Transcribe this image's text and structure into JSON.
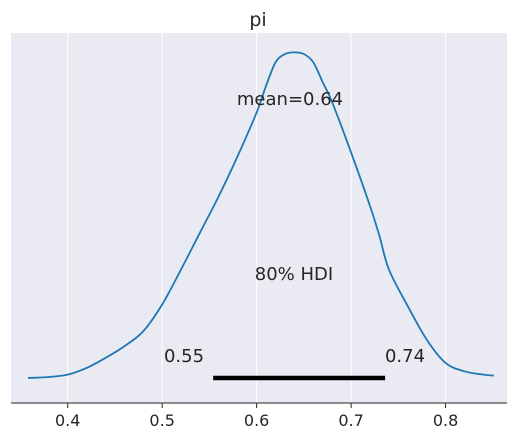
{
  "chart_data": {
    "type": "area",
    "title": "pi",
    "xlabel": "",
    "ylabel": "",
    "xlim": [
      0.34,
      0.865
    ],
    "ylim": [
      0,
      1.02
    ],
    "x_ticks": [
      0.4,
      0.5,
      0.6,
      0.7,
      0.8
    ],
    "x_tick_labels": [
      "0.4",
      "0.5",
      "0.6",
      "0.7",
      "0.8"
    ],
    "grid": "vertical",
    "background": "#eaeaf2",
    "series": [
      {
        "color": "#1f77b4",
        "x": [
          0.358,
          0.38,
          0.4,
          0.42,
          0.44,
          0.46,
          0.48,
          0.5,
          0.52,
          0.54,
          0.56,
          0.58,
          0.6,
          0.61,
          0.62,
          0.63,
          0.64,
          0.65,
          0.66,
          0.67,
          0.68,
          0.7,
          0.72,
          0.73,
          0.74,
          0.76,
          0.78,
          0.8,
          0.82,
          0.84,
          0.851
        ],
        "y": [
          0.015,
          0.018,
          0.025,
          0.045,
          0.075,
          0.11,
          0.155,
          0.235,
          0.34,
          0.45,
          0.56,
          0.68,
          0.81,
          0.89,
          0.96,
          0.985,
          0.99,
          0.985,
          0.96,
          0.9,
          0.84,
          0.69,
          0.53,
          0.44,
          0.34,
          0.23,
          0.13,
          0.06,
          0.035,
          0.025,
          0.022
        ]
      }
    ],
    "annotations": {
      "mean_label": "mean=0.64",
      "hdi_label": "80% HDI",
      "hdi_low_label": "0.55",
      "hdi_high_label": "0.74"
    },
    "hdi": {
      "prob": 0.8,
      "low": 0.554,
      "high": 0.736
    }
  }
}
